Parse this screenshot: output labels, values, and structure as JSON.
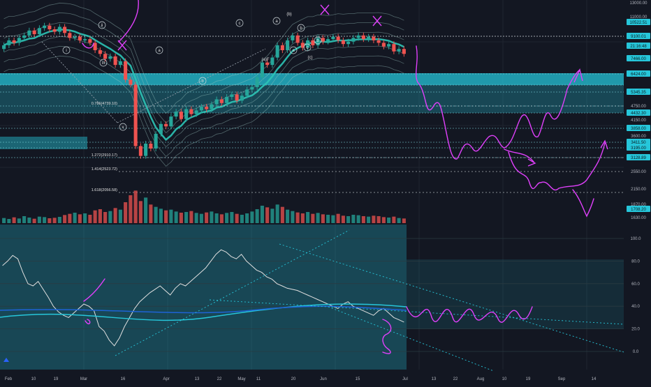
{
  "colors": {
    "background": "#131722",
    "grid": "#1f2430",
    "up": "#26a69a",
    "down": "#ef5350",
    "zone": "#26c6da",
    "band": "#9ec7c4",
    "annotation": "#e040fb",
    "axis_text": "#b2b5be",
    "price_tag_bg": "#26c6da",
    "price_tag_text": "#0b1a1f"
  },
  "chart_data": [
    {
      "type": "candlestick",
      "title": "",
      "price_axis_labels": [
        "13000.00",
        "11000.00",
        "10522.51",
        "9100.01",
        "21:16:48",
        "7466.00",
        "6424.00",
        "5345.35",
        "4750.00",
        "4432.30",
        "4150.00",
        "3858.00",
        "3600.00",
        "3411.50",
        "3195.00",
        "3128.89",
        "2550.00",
        "2150.00",
        "1870.00",
        "1708.20",
        "1630.00"
      ],
      "highlighted_price_labels": [
        "10522.51",
        "9100.01",
        "21:16:48",
        "7466.00",
        "6424.00",
        "5345.35",
        "4432.30",
        "3858.00",
        "3411.50",
        "3195.00",
        "3128.89",
        "1708.20"
      ],
      "x_tick_labels": [
        "Feb",
        "10",
        "19",
        "Mar",
        "16",
        "Apr",
        "13",
        "22",
        "May",
        "11",
        "20",
        "Jun",
        "15",
        "Jul",
        "13",
        "22",
        "Aug",
        "10",
        "19",
        "Sep",
        "14"
      ],
      "fib_labels": [
        "0.786(4739.10)",
        "1.272(2910.17)",
        "1.414(2523.72)",
        "1.618(2056.58)"
      ],
      "wave_labels": [
        "i",
        "ii",
        "iii",
        "iv",
        "v",
        "a",
        "b",
        "c",
        "(b)",
        "a",
        "b",
        "c",
        "(c)",
        "(a)F",
        "b",
        "a"
      ],
      "ylim": [
        1630,
        13000
      ],
      "candles": [
        {
          "o": 9350,
          "c": 9500
        },
        {
          "o": 9500,
          "c": 9700
        },
        {
          "o": 9700,
          "c": 9600
        },
        {
          "o": 9600,
          "c": 9800
        },
        {
          "o": 9800,
          "c": 9900
        },
        {
          "o": 9900,
          "c": 10100
        },
        {
          "o": 10100,
          "c": 9950
        },
        {
          "o": 9950,
          "c": 10200
        },
        {
          "o": 10200,
          "c": 10300
        },
        {
          "o": 10300,
          "c": 10150
        },
        {
          "o": 10150,
          "c": 10050
        },
        {
          "o": 10050,
          "c": 10250
        },
        {
          "o": 10250,
          "c": 10000
        },
        {
          "o": 10000,
          "c": 9800
        },
        {
          "o": 9800,
          "c": 9850
        },
        {
          "o": 9850,
          "c": 9700
        },
        {
          "o": 9700,
          "c": 9750
        },
        {
          "o": 9750,
          "c": 9600
        },
        {
          "o": 9600,
          "c": 9300
        },
        {
          "o": 9300,
          "c": 9150
        },
        {
          "o": 9150,
          "c": 8950
        },
        {
          "o": 8950,
          "c": 9050
        },
        {
          "o": 9050,
          "c": 8700
        },
        {
          "o": 8700,
          "c": 8850
        },
        {
          "o": 8850,
          "c": 8100
        },
        {
          "o": 8100,
          "c": 7900
        },
        {
          "o": 7900,
          "c": 5400
        },
        {
          "o": 5400,
          "c": 5000
        },
        {
          "o": 5000,
          "c": 5500
        },
        {
          "o": 5500,
          "c": 5300
        },
        {
          "o": 5300,
          "c": 5900
        },
        {
          "o": 5900,
          "c": 6300
        },
        {
          "o": 6300,
          "c": 6200
        },
        {
          "o": 6200,
          "c": 6600
        },
        {
          "o": 6600,
          "c": 6800
        },
        {
          "o": 6800,
          "c": 6500
        },
        {
          "o": 6500,
          "c": 6900
        },
        {
          "o": 6900,
          "c": 6700
        },
        {
          "o": 6700,
          "c": 6850
        },
        {
          "o": 6850,
          "c": 7000
        },
        {
          "o": 7000,
          "c": 6900
        },
        {
          "o": 6900,
          "c": 7100
        },
        {
          "o": 7100,
          "c": 7300
        },
        {
          "o": 7300,
          "c": 7150
        },
        {
          "o": 7150,
          "c": 7400
        },
        {
          "o": 7400,
          "c": 7500
        },
        {
          "o": 7500,
          "c": 7250
        },
        {
          "o": 7250,
          "c": 7450
        },
        {
          "o": 7450,
          "c": 7700
        },
        {
          "o": 7700,
          "c": 7800
        },
        {
          "o": 7800,
          "c": 8200
        },
        {
          "o": 8200,
          "c": 8800
        },
        {
          "o": 8800,
          "c": 8700
        },
        {
          "o": 8700,
          "c": 9000
        },
        {
          "o": 9000,
          "c": 9500
        },
        {
          "o": 9500,
          "c": 9300
        },
        {
          "o": 9300,
          "c": 9700
        },
        {
          "o": 9700,
          "c": 9900
        },
        {
          "o": 9900,
          "c": 9600
        },
        {
          "o": 9600,
          "c": 9400
        },
        {
          "o": 9400,
          "c": 9700
        },
        {
          "o": 9700,
          "c": 9500
        },
        {
          "o": 9500,
          "c": 9800
        },
        {
          "o": 9800,
          "c": 9650
        },
        {
          "o": 9650,
          "c": 9750
        },
        {
          "o": 9750,
          "c": 9850
        },
        {
          "o": 9850,
          "c": 9700
        },
        {
          "o": 9700,
          "c": 9550
        },
        {
          "o": 9550,
          "c": 9650
        },
        {
          "o": 9650,
          "c": 9800
        },
        {
          "o": 9800,
          "c": 9900
        },
        {
          "o": 9900,
          "c": 9750
        },
        {
          "o": 9750,
          "c": 9850
        },
        {
          "o": 9850,
          "c": 9700
        },
        {
          "o": 9700,
          "c": 9600
        },
        {
          "o": 9600,
          "c": 9450
        },
        {
          "o": 9450,
          "c": 9550
        },
        {
          "o": 9550,
          "c": 9250
        },
        {
          "o": 9250,
          "c": 9350
        },
        {
          "o": 9350,
          "c": 9150
        }
      ],
      "volume": [
        22,
        18,
        25,
        20,
        30,
        24,
        19,
        28,
        26,
        21,
        23,
        27,
        35,
        40,
        45,
        38,
        42,
        36,
        55,
        60,
        48,
        52,
        65,
        58,
        90,
        120,
        140,
        95,
        110,
        80,
        70,
        62,
        55,
        58,
        50,
        45,
        48,
        52,
        44,
        40,
        46,
        50,
        42,
        38,
        44,
        48,
        40,
        36,
        42,
        50,
        60,
        75,
        68,
        62,
        80,
        70,
        58,
        52,
        46,
        42,
        48,
        40,
        44,
        38,
        36,
        34,
        40,
        32,
        30,
        36,
        34,
        30,
        28,
        32,
        30,
        26,
        24,
        28,
        22,
        20
      ],
      "volume_ylim": [
        0,
        150
      ]
    },
    {
      "type": "line",
      "title": "",
      "ylim": [
        -5,
        105
      ],
      "y_tick_labels": [
        "100.0",
        "80.0",
        "60.0",
        "40.0",
        "20.0",
        "0.0"
      ],
      "series": [
        {
          "values": [
            76,
            80,
            85,
            82,
            70,
            60,
            58,
            62,
            55,
            48,
            40,
            35,
            32,
            30,
            34,
            38,
            42,
            40,
            36,
            22,
            18,
            10,
            5,
            12,
            22,
            30,
            38,
            44,
            48,
            52,
            55,
            58,
            54,
            50,
            56,
            60,
            58,
            62,
            66,
            70,
            74,
            80,
            86,
            90,
            88,
            84,
            82,
            86,
            80,
            76,
            72,
            70,
            66,
            64,
            60,
            58,
            56,
            55,
            54,
            52,
            50,
            48,
            46,
            44,
            42,
            40,
            38,
            42,
            44,
            40,
            38,
            36,
            34,
            32,
            36,
            38,
            34,
            30,
            28,
            26
          ]
        }
      ]
    }
  ]
}
